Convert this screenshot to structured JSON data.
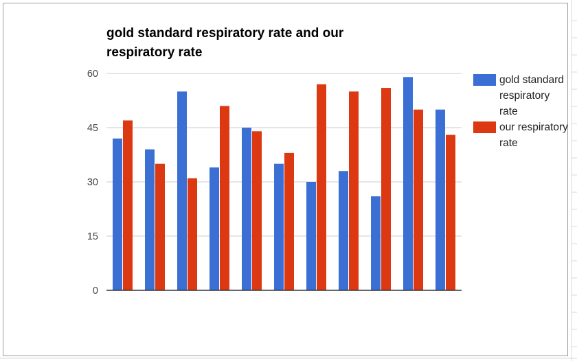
{
  "chart_data": {
    "type": "bar",
    "title": "gold standard respiratory rate and our respiratory rate",
    "xlabel": "",
    "ylabel": "",
    "ylim": [
      0,
      60
    ],
    "yticks": [
      0,
      15,
      30,
      45,
      60
    ],
    "grid": true,
    "legend_position": "right",
    "categories": [
      "",
      "",
      "",
      "",
      "",
      "",
      "",
      "",
      "",
      "",
      ""
    ],
    "series": [
      {
        "name": "gold standard respiratory rate",
        "color": "#3b6fd4",
        "values": [
          42,
          39,
          55,
          34,
          45,
          35,
          30,
          33,
          26,
          59,
          50
        ]
      },
      {
        "name": "our respiratory rate",
        "color": "#dc3912",
        "values": [
          47,
          35,
          31,
          51,
          44,
          38,
          57,
          55,
          56,
          50,
          43
        ]
      }
    ]
  }
}
